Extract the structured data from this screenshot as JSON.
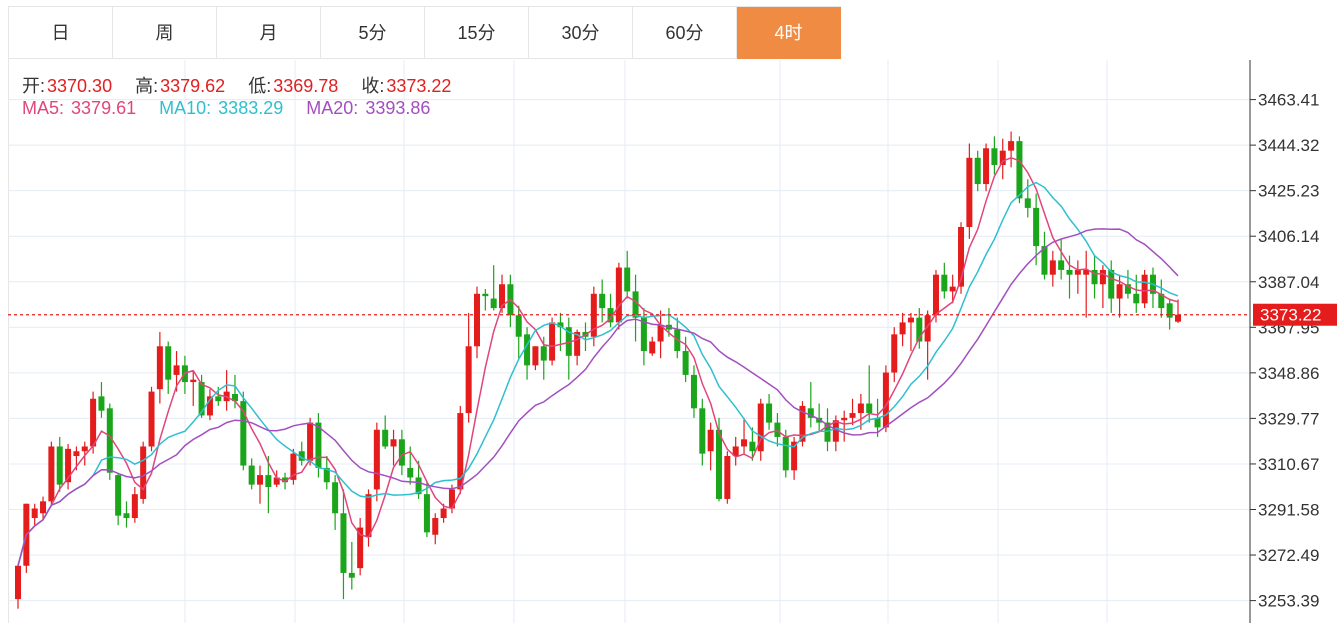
{
  "tabs": [
    {
      "label": "日",
      "active": false
    },
    {
      "label": "周",
      "active": false
    },
    {
      "label": "月",
      "active": false
    },
    {
      "label": "5分",
      "active": false
    },
    {
      "label": "15分",
      "active": false
    },
    {
      "label": "30分",
      "active": false
    },
    {
      "label": "60分",
      "active": false
    },
    {
      "label": "4时",
      "active": true
    }
  ],
  "info": {
    "open_label": "开:",
    "open": "3370.30",
    "high_label": "高:",
    "high": "3379.62",
    "low_label": "低:",
    "low": "3369.78",
    "close_label": "收:",
    "close": "3373.22",
    "ma5_label": "MA5:",
    "ma5": "3379.61",
    "ma10_label": "MA10:",
    "ma10": "3383.29",
    "ma20_label": "MA20:",
    "ma20": "3393.86"
  },
  "colors": {
    "up": "#e41c1c",
    "down": "#1aa51a",
    "ma5": "#e0467c",
    "ma10": "#2fbfcf",
    "ma20": "#a24fc0",
    "grid": "#e4ecf4",
    "price_line": "#e41c1c",
    "active_tab": "#f08b43"
  },
  "chart_data": {
    "type": "candlestick",
    "yticks": [
      3463.41,
      3444.32,
      3425.23,
      3406.14,
      3387.04,
      3367.95,
      3348.86,
      3329.77,
      3310.67,
      3291.58,
      3272.49,
      3253.39
    ],
    "ylim": [
      3244,
      3480
    ],
    "last_price": "3373.22",
    "candles": [
      [
        3254,
        3268,
        3250,
        3268
      ],
      [
        3268,
        3294,
        3265,
        3294
      ],
      [
        3288,
        3294,
        3285,
        3292
      ],
      [
        3290,
        3297,
        3287,
        3295
      ],
      [
        3295,
        3320,
        3293,
        3318
      ],
      [
        3318,
        3322,
        3299,
        3302
      ],
      [
        3303,
        3319,
        3300,
        3317
      ],
      [
        3314,
        3318,
        3308,
        3316
      ],
      [
        3316,
        3320,
        3310,
        3318
      ],
      [
        3318,
        3341,
        3315,
        3338
      ],
      [
        3339,
        3345,
        3330,
        3333
      ],
      [
        3334,
        3336,
        3304,
        3307
      ],
      [
        3306,
        3307,
        3285,
        3289
      ],
      [
        3290,
        3295,
        3284,
        3288
      ],
      [
        3288,
        3301,
        3286,
        3298
      ],
      [
        3296,
        3320,
        3294,
        3318
      ],
      [
        3318,
        3343,
        3316,
        3341
      ],
      [
        3342,
        3366,
        3336,
        3360
      ],
      [
        3360,
        3362,
        3340,
        3346
      ],
      [
        3348,
        3358,
        3341,
        3352
      ],
      [
        3352,
        3356,
        3340,
        3345
      ],
      [
        3345,
        3350,
        3335,
        3346
      ],
      [
        3345,
        3348,
        3330,
        3331
      ],
      [
        3331,
        3342,
        3329,
        3339
      ],
      [
        3339,
        3343,
        3335,
        3337
      ],
      [
        3337,
        3350,
        3333,
        3341
      ],
      [
        3340,
        3348,
        3334,
        3337
      ],
      [
        3337,
        3341,
        3308,
        3310
      ],
      [
        3310,
        3313,
        3300,
        3302
      ],
      [
        3302,
        3310,
        3294,
        3306
      ],
      [
        3306,
        3314,
        3290,
        3301
      ],
      [
        3302,
        3308,
        3301,
        3305
      ],
      [
        3305,
        3307,
        3300,
        3303
      ],
      [
        3304,
        3317,
        3302,
        3315
      ],
      [
        3316,
        3320,
        3310,
        3312
      ],
      [
        3312,
        3330,
        3310,
        3328
      ],
      [
        3328,
        3332,
        3305,
        3309
      ],
      [
        3309,
        3314,
        3300,
        3303
      ],
      [
        3303,
        3306,
        3283,
        3290
      ],
      [
        3290,
        3300,
        3254,
        3265
      ],
      [
        3265,
        3278,
        3258,
        3263
      ],
      [
        3267,
        3288,
        3264,
        3284
      ],
      [
        3280,
        3300,
        3276,
        3298
      ],
      [
        3300,
        3328,
        3295,
        3325
      ],
      [
        3325,
        3331,
        3317,
        3318
      ],
      [
        3318,
        3325,
        3310,
        3321
      ],
      [
        3321,
        3325,
        3306,
        3310
      ],
      [
        3309,
        3318,
        3302,
        3305
      ],
      [
        3305,
        3312,
        3296,
        3298
      ],
      [
        3298,
        3303,
        3280,
        3282
      ],
      [
        3281,
        3290,
        3277,
        3288
      ],
      [
        3288,
        3294,
        3286,
        3292
      ],
      [
        3292,
        3302,
        3290,
        3300
      ],
      [
        3300,
        3335,
        3298,
        3332
      ],
      [
        3332,
        3374,
        3328,
        3360
      ],
      [
        3360,
        3385,
        3355,
        3382
      ],
      [
        3382,
        3384,
        3375,
        3381
      ],
      [
        3380,
        3394,
        3375,
        3376
      ],
      [
        3376,
        3390,
        3374,
        3386
      ],
      [
        3386,
        3390,
        3368,
        3373
      ],
      [
        3373,
        3377,
        3355,
        3364
      ],
      [
        3365,
        3368,
        3346,
        3352
      ],
      [
        3352,
        3360,
        3350,
        3360
      ],
      [
        3360,
        3364,
        3346,
        3354
      ],
      [
        3354,
        3372,
        3352,
        3370
      ],
      [
        3370,
        3374,
        3358,
        3368
      ],
      [
        3368,
        3372,
        3346,
        3356
      ],
      [
        3356,
        3367,
        3352,
        3366
      ],
      [
        3366,
        3370,
        3358,
        3364
      ],
      [
        3364,
        3385,
        3360,
        3382
      ],
      [
        3382,
        3388,
        3370,
        3376
      ],
      [
        3376,
        3382,
        3368,
        3370
      ],
      [
        3370,
        3395,
        3367,
        3393
      ],
      [
        3393,
        3400,
        3380,
        3383
      ],
      [
        3383,
        3390,
        3362,
        3372
      ],
      [
        3372,
        3376,
        3352,
        3358
      ],
      [
        3357,
        3364,
        3356,
        3362
      ],
      [
        3362,
        3375,
        3355,
        3369
      ],
      [
        3369,
        3376,
        3364,
        3367
      ],
      [
        3367,
        3372,
        3355,
        3358
      ],
      [
        3358,
        3364,
        3345,
        3348
      ],
      [
        3348,
        3352,
        3330,
        3334
      ],
      [
        3334,
        3338,
        3310,
        3315
      ],
      [
        3316,
        3328,
        3308,
        3325
      ],
      [
        3325,
        3330,
        3295,
        3296
      ],
      [
        3296,
        3316,
        3294,
        3314
      ],
      [
        3314,
        3322,
        3310,
        3318
      ],
      [
        3318,
        3330,
        3315,
        3321
      ],
      [
        3320,
        3326,
        3312,
        3316
      ],
      [
        3316,
        3338,
        3312,
        3336
      ],
      [
        3336,
        3340,
        3325,
        3328
      ],
      [
        3328,
        3332,
        3318,
        3322
      ],
      [
        3322,
        3325,
        3305,
        3308
      ],
      [
        3308,
        3322,
        3304,
        3320
      ],
      [
        3320,
        3337,
        3318,
        3335
      ],
      [
        3334,
        3345,
        3326,
        3330
      ],
      [
        3330,
        3336,
        3324,
        3328
      ],
      [
        3328,
        3334,
        3316,
        3320
      ],
      [
        3320,
        3331,
        3316,
        3329
      ],
      [
        3329,
        3333,
        3320,
        3330
      ],
      [
        3330,
        3338,
        3327,
        3332
      ],
      [
        3332,
        3340,
        3325,
        3336
      ],
      [
        3336,
        3352,
        3328,
        3332
      ],
      [
        3330,
        3338,
        3322,
        3326
      ],
      [
        3326,
        3352,
        3324,
        3349
      ],
      [
        3349,
        3368,
        3345,
        3365
      ],
      [
        3365,
        3374,
        3360,
        3370
      ],
      [
        3370,
        3374,
        3358,
        3372
      ],
      [
        3372,
        3376,
        3359,
        3362
      ],
      [
        3362,
        3375,
        3346,
        3373
      ],
      [
        3373,
        3392,
        3370,
        3390
      ],
      [
        3390,
        3395,
        3380,
        3383
      ],
      [
        3383,
        3390,
        3378,
        3385
      ],
      [
        3385,
        3412,
        3382,
        3410
      ],
      [
        3410,
        3445,
        3405,
        3439
      ],
      [
        3439,
        3442,
        3425,
        3428
      ],
      [
        3428,
        3445,
        3425,
        3443
      ],
      [
        3443,
        3448,
        3432,
        3436
      ],
      [
        3436,
        3447,
        3430,
        3442
      ],
      [
        3442,
        3450,
        3435,
        3446
      ],
      [
        3446,
        3448,
        3420,
        3422
      ],
      [
        3422,
        3430,
        3414,
        3418
      ],
      [
        3418,
        3424,
        3394,
        3402
      ],
      [
        3402,
        3408,
        3388,
        3390
      ],
      [
        3390,
        3400,
        3385,
        3396
      ],
      [
        3396,
        3405,
        3388,
        3392
      ],
      [
        3392,
        3398,
        3380,
        3390
      ],
      [
        3390,
        3396,
        3382,
        3392
      ],
      [
        3390,
        3400,
        3372,
        3392
      ],
      [
        3392,
        3398,
        3380,
        3386
      ],
      [
        3386,
        3394,
        3376,
        3392
      ],
      [
        3392,
        3396,
        3374,
        3380
      ],
      [
        3380,
        3390,
        3372,
        3386
      ],
      [
        3386,
        3392,
        3380,
        3382
      ],
      [
        3382,
        3390,
        3374,
        3378
      ],
      [
        3378,
        3392,
        3376,
        3390
      ],
      [
        3390,
        3393,
        3376,
        3382
      ],
      [
        3382,
        3388,
        3372,
        3376
      ],
      [
        3378,
        3380,
        3367,
        3372
      ],
      [
        3370.3,
        3379.62,
        3369.78,
        3373.22
      ]
    ]
  }
}
